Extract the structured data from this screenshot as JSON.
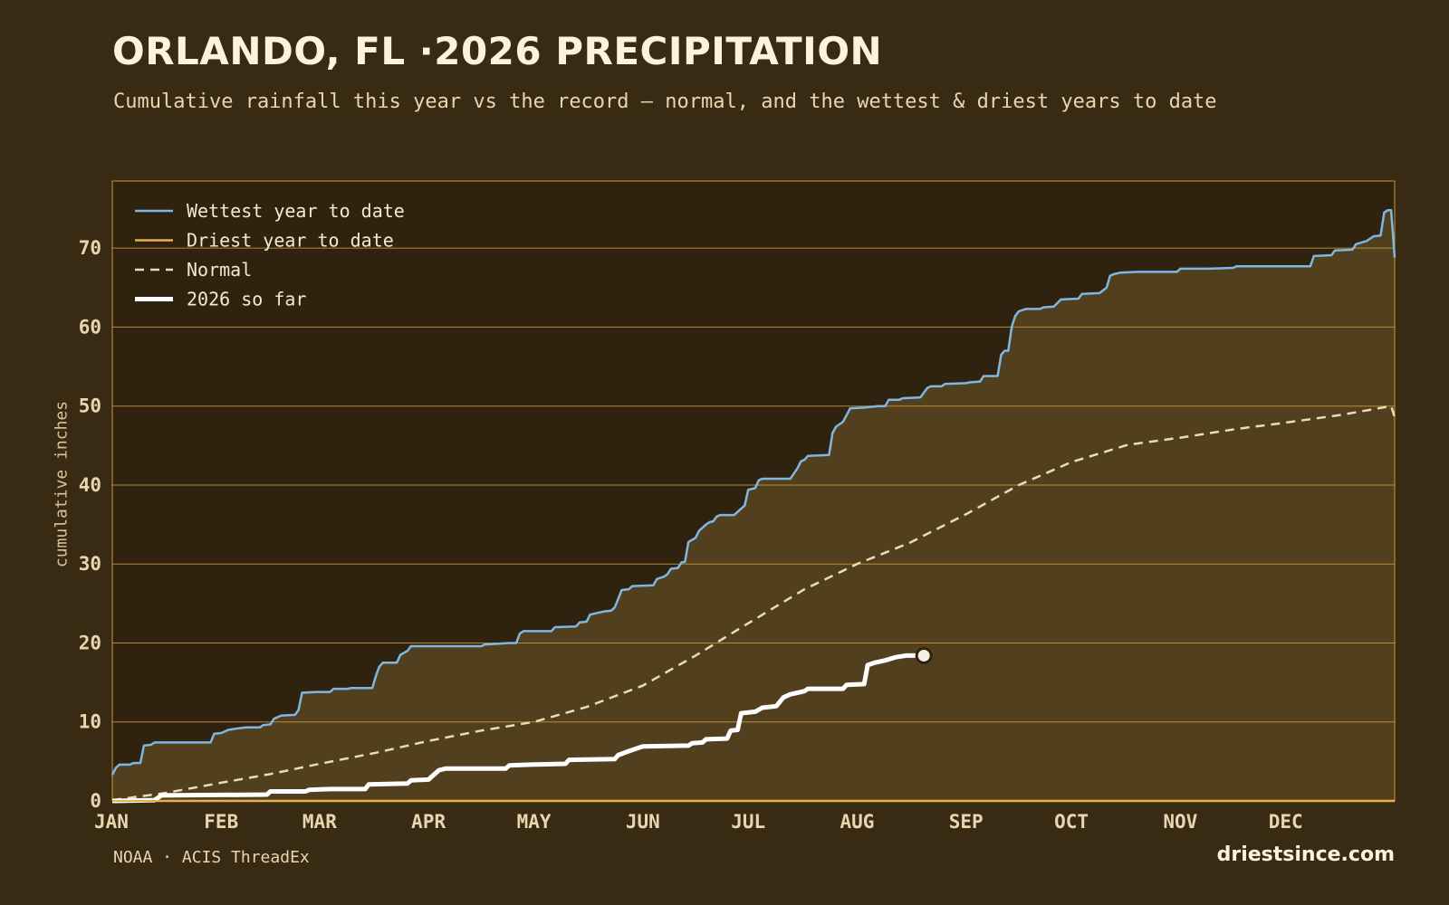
{
  "title": "ORLANDO, FL ·2026 PRECIPITATION",
  "subtitle": "Cumulative rainfall this year vs the record — normal, and the wettest & driest years to date",
  "footer": {
    "source": "NOAA · ACIS ThreadEx",
    "site": "driestsince.com"
  },
  "colors": {
    "background": "#382a13",
    "plot_bg": "#2f2310",
    "band_fill": "#523f1e",
    "grid": "#c99a3a",
    "wettest": "#7fb7e3",
    "driest": "#e8b04a",
    "normal": "#e9dcbc",
    "current": "#ffffff"
  },
  "chart_data": {
    "type": "line",
    "title": "ORLANDO, FL ·2026 PRECIPITATION",
    "xlabel": "",
    "ylabel": "cumulative inches",
    "xlim": [
      0,
      365
    ],
    "ylim": [
      0,
      78.5
    ],
    "grid": true,
    "legend_position": "top-left",
    "x_ticks": [
      {
        "label": "JAN",
        "day": 0
      },
      {
        "label": "FEB",
        "day": 31
      },
      {
        "label": "MAR",
        "day": 59
      },
      {
        "label": "APR",
        "day": 90
      },
      {
        "label": "MAY",
        "day": 120
      },
      {
        "label": "JUN",
        "day": 151
      },
      {
        "label": "JUL",
        "day": 181
      },
      {
        "label": "AUG",
        "day": 212
      },
      {
        "label": "SEP",
        "day": 243
      },
      {
        "label": "OCT",
        "day": 273
      },
      {
        "label": "NOV",
        "day": 304
      },
      {
        "label": "DEC",
        "day": 334
      }
    ],
    "y_ticks": [
      0,
      10,
      20,
      30,
      40,
      50,
      60,
      70
    ],
    "series": [
      {
        "name": "Wettest year to date",
        "style": "solid",
        "points": [
          [
            0,
            3.3
          ],
          [
            1,
            4.2
          ],
          [
            2,
            4.6
          ],
          [
            5,
            4.6
          ],
          [
            6,
            4.8
          ],
          [
            8,
            4.8
          ],
          [
            9,
            7.0
          ],
          [
            11,
            7.1
          ],
          [
            12,
            7.4
          ],
          [
            28,
            7.4
          ],
          [
            29,
            8.5
          ],
          [
            31,
            8.6
          ],
          [
            33,
            9.0
          ],
          [
            36,
            9.2
          ],
          [
            38,
            9.3
          ],
          [
            42,
            9.3
          ],
          [
            43,
            9.6
          ],
          [
            45,
            9.7
          ],
          [
            46,
            10.4
          ],
          [
            48,
            10.8
          ],
          [
            52,
            10.9
          ],
          [
            53,
            11.5
          ],
          [
            54,
            13.7
          ],
          [
            58,
            13.8
          ],
          [
            62,
            13.8
          ],
          [
            63,
            14.2
          ],
          [
            67,
            14.2
          ],
          [
            68,
            14.3
          ],
          [
            74,
            14.3
          ],
          [
            75,
            15.8
          ],
          [
            76,
            17.0
          ],
          [
            77,
            17.5
          ],
          [
            81,
            17.5
          ],
          [
            82,
            18.5
          ],
          [
            84,
            19.0
          ],
          [
            85,
            19.6
          ],
          [
            105,
            19.6
          ],
          [
            106,
            19.8
          ],
          [
            113,
            20.0
          ],
          [
            115,
            20.0
          ],
          [
            116,
            21.2
          ],
          [
            117,
            21.5
          ],
          [
            125,
            21.5
          ],
          [
            126,
            22.0
          ],
          [
            132,
            22.1
          ],
          [
            133,
            22.6
          ],
          [
            135,
            22.7
          ],
          [
            136,
            23.6
          ],
          [
            138,
            23.8
          ],
          [
            140,
            24.0
          ],
          [
            142,
            24.1
          ],
          [
            143,
            24.5
          ],
          [
            145,
            26.7
          ],
          [
            147,
            26.8
          ],
          [
            148,
            27.2
          ],
          [
            154,
            27.3
          ],
          [
            155,
            28.1
          ],
          [
            157,
            28.4
          ],
          [
            158,
            28.7
          ],
          [
            159,
            29.4
          ],
          [
            161,
            29.5
          ],
          [
            162,
            30.2
          ],
          [
            163,
            30.3
          ],
          [
            164,
            32.8
          ],
          [
            166,
            33.3
          ],
          [
            167,
            34.2
          ],
          [
            169,
            35.0
          ],
          [
            170,
            35.3
          ],
          [
            171,
            35.4
          ],
          [
            172,
            36.0
          ],
          [
            173,
            36.2
          ],
          [
            177,
            36.2
          ],
          [
            178,
            36.6
          ],
          [
            180,
            37.4
          ],
          [
            181,
            39.4
          ],
          [
            183,
            39.6
          ],
          [
            184,
            40.6
          ],
          [
            185,
            40.8
          ],
          [
            193,
            40.8
          ],
          [
            195,
            42.1
          ],
          [
            196,
            43.0
          ],
          [
            197,
            43.2
          ],
          [
            198,
            43.7
          ],
          [
            204,
            43.8
          ],
          [
            205,
            46.6
          ],
          [
            206,
            47.4
          ],
          [
            208,
            48.0
          ],
          [
            210,
            49.7
          ],
          [
            214,
            49.8
          ],
          [
            218,
            50.0
          ],
          [
            220,
            50.0
          ],
          [
            221,
            50.8
          ],
          [
            224,
            50.8
          ],
          [
            225,
            51.0
          ],
          [
            230,
            51.1
          ],
          [
            232,
            52.3
          ],
          [
            233,
            52.5
          ],
          [
            236,
            52.5
          ],
          [
            237,
            52.8
          ],
          [
            243,
            52.9
          ],
          [
            244,
            53.0
          ],
          [
            247,
            53.1
          ],
          [
            248,
            53.8
          ],
          [
            252,
            53.8
          ],
          [
            253,
            56.5
          ],
          [
            254,
            57.0
          ],
          [
            255,
            57.0
          ],
          [
            256,
            60.0
          ],
          [
            257,
            61.4
          ],
          [
            258,
            62.0
          ],
          [
            260,
            62.3
          ],
          [
            264,
            62.3
          ],
          [
            265,
            62.5
          ],
          [
            268,
            62.6
          ],
          [
            270,
            63.5
          ],
          [
            275,
            63.6
          ],
          [
            276,
            64.2
          ],
          [
            281,
            64.3
          ],
          [
            283,
            65.0
          ],
          [
            284,
            66.5
          ],
          [
            285,
            66.7
          ],
          [
            287,
            66.9
          ],
          [
            292,
            67.0
          ],
          [
            303,
            67.0
          ],
          [
            304,
            67.4
          ],
          [
            312,
            67.4
          ],
          [
            319,
            67.5
          ],
          [
            320,
            67.7
          ],
          [
            341,
            67.7
          ],
          [
            342,
            69.0
          ],
          [
            347,
            69.1
          ],
          [
            348,
            69.7
          ],
          [
            353,
            69.8
          ],
          [
            354,
            70.5
          ],
          [
            357,
            70.9
          ],
          [
            359,
            71.5
          ],
          [
            361,
            71.6
          ],
          [
            362,
            74.5
          ],
          [
            363,
            74.8
          ],
          [
            364,
            74.8
          ],
          [
            365,
            68.8
          ]
        ]
      },
      {
        "name": "Driest year to date",
        "style": "solid",
        "points": [
          [
            0,
            0.0
          ],
          [
            365,
            0.0
          ]
        ]
      },
      {
        "name": "Normal",
        "style": "dashed",
        "points": [
          [
            0,
            0.1
          ],
          [
            15,
            1.0
          ],
          [
            31,
            2.3
          ],
          [
            45,
            3.4
          ],
          [
            59,
            4.7
          ],
          [
            75,
            6.1
          ],
          [
            90,
            7.6
          ],
          [
            105,
            8.9
          ],
          [
            120,
            10.0
          ],
          [
            135,
            11.9
          ],
          [
            151,
            14.6
          ],
          [
            166,
            18.4
          ],
          [
            181,
            22.5
          ],
          [
            197,
            26.8
          ],
          [
            212,
            30.0
          ],
          [
            227,
            32.7
          ],
          [
            243,
            36.3
          ],
          [
            258,
            40.0
          ],
          [
            273,
            42.9
          ],
          [
            289,
            45.1
          ],
          [
            304,
            46.0
          ],
          [
            320,
            47.1
          ],
          [
            334,
            47.9
          ],
          [
            350,
            48.9
          ],
          [
            364,
            50.0
          ],
          [
            365,
            48.6
          ]
        ]
      },
      {
        "name": "2026 so far",
        "style": "thick",
        "points": [
          [
            0,
            0.0
          ],
          [
            12,
            0.1
          ],
          [
            14,
            0.7
          ],
          [
            44,
            0.8
          ],
          [
            45,
            1.2
          ],
          [
            55,
            1.2
          ],
          [
            56,
            1.4
          ],
          [
            62,
            1.5
          ],
          [
            72,
            1.5
          ],
          [
            73,
            2.1
          ],
          [
            84,
            2.2
          ],
          [
            85,
            2.6
          ],
          [
            90,
            2.7
          ],
          [
            91,
            3.1
          ],
          [
            93,
            3.9
          ],
          [
            95,
            4.1
          ],
          [
            112,
            4.1
          ],
          [
            113,
            4.5
          ],
          [
            119,
            4.6
          ],
          [
            129,
            4.7
          ],
          [
            130,
            5.2
          ],
          [
            143,
            5.3
          ],
          [
            144,
            5.8
          ],
          [
            147,
            6.3
          ],
          [
            149,
            6.6
          ],
          [
            151,
            6.9
          ],
          [
            164,
            7.0
          ],
          [
            165,
            7.3
          ],
          [
            168,
            7.4
          ],
          [
            169,
            7.8
          ],
          [
            175,
            7.9
          ],
          [
            176,
            8.9
          ],
          [
            178,
            9.0
          ],
          [
            179,
            11.1
          ],
          [
            183,
            11.3
          ],
          [
            185,
            11.8
          ],
          [
            189,
            12.0
          ],
          [
            191,
            13.1
          ],
          [
            193,
            13.5
          ],
          [
            195,
            13.7
          ],
          [
            197,
            13.9
          ],
          [
            198,
            14.2
          ],
          [
            208,
            14.2
          ],
          [
            209,
            14.7
          ],
          [
            214,
            14.8
          ],
          [
            215,
            17.2
          ],
          [
            217,
            17.5
          ],
          [
            220,
            17.8
          ],
          [
            223,
            18.2
          ],
          [
            226,
            18.4
          ],
          [
            231,
            18.4
          ]
        ]
      }
    ]
  }
}
